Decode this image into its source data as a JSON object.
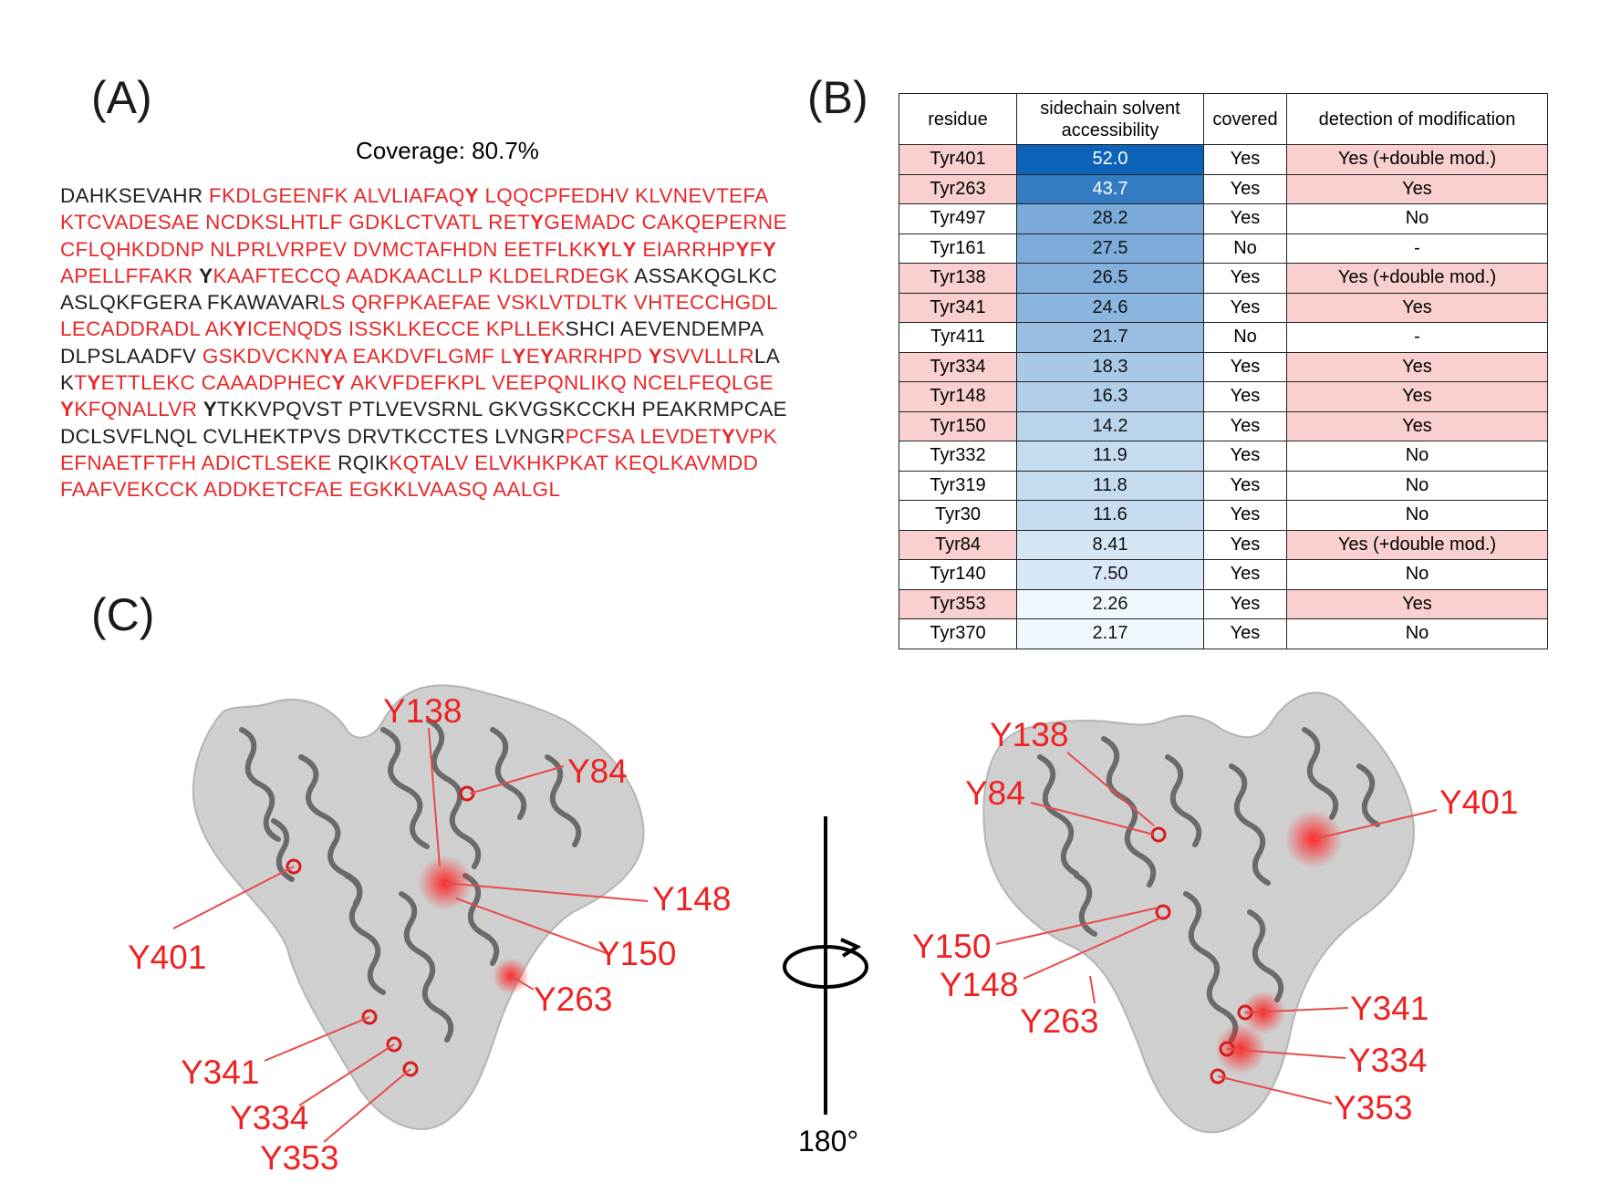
{
  "panels": {
    "a": "(A)",
    "b": "(B)",
    "c": "(C)"
  },
  "coverage": "Coverage: 80.7%",
  "sequence_lines": [
    [
      [
        "DAHKSEVAHR ",
        "u"
      ],
      [
        "FKDLGEENFK ALVLIAFAQ",
        "c"
      ],
      [
        "Y",
        "cy"
      ],
      [
        " LQQCPFEDHV KLVNEVTEFA",
        "c"
      ]
    ],
    [
      [
        "KTCVADESAE NCDKSLHTLF GDKLCTVATL RET",
        "c"
      ],
      [
        "Y",
        "cy"
      ],
      [
        "GEMADC CAKQEPERNE",
        "c"
      ]
    ],
    [
      [
        "CFLQHKDDNP NLPRLVRPEV DVMCTAFHDN EETFLKK",
        "c"
      ],
      [
        "Y",
        "cy"
      ],
      [
        "L",
        "c"
      ],
      [
        "Y",
        "cy"
      ],
      [
        " EIARRHP",
        "c"
      ],
      [
        "Y",
        "cy"
      ],
      [
        "F",
        "c"
      ],
      [
        "Y",
        "cy"
      ]
    ],
    [
      [
        "APELLFFAKR ",
        "c"
      ],
      [
        "Y",
        "uy"
      ],
      [
        "KAAFTECCQ AADKAACLLP KLDELRDEGK ",
        "c"
      ],
      [
        "ASSAKQGLKC",
        "u"
      ]
    ],
    [
      [
        "ASLQKFGERA FKAWAVAR",
        "u"
      ],
      [
        "LS QRFPKAEFAE VSKLVTDLTK VHTECCHGDL",
        "c"
      ]
    ],
    [
      [
        "LECADDRADL AK",
        "c"
      ],
      [
        "Y",
        "cy"
      ],
      [
        "ICENQDS ISSKLKECCE KPLLEK",
        "c"
      ],
      [
        "SHCI AEVENDEMPA",
        "u"
      ]
    ],
    [
      [
        "DLPSLAADFV ",
        "u"
      ],
      [
        "GSKDVCKN",
        "c"
      ],
      [
        "Y",
        "cy"
      ],
      [
        "A EAKDVFLGMF L",
        "c"
      ],
      [
        "Y",
        "cy"
      ],
      [
        "E",
        "c"
      ],
      [
        "Y",
        "cy"
      ],
      [
        "ARRHPD ",
        "c"
      ],
      [
        "Y",
        "cy"
      ],
      [
        "SVVLLLR",
        "c"
      ],
      [
        "LA",
        "u"
      ]
    ],
    [
      [
        "K",
        "u"
      ],
      [
        "T",
        "c"
      ],
      [
        "Y",
        "cy"
      ],
      [
        "ETTLEKC CAAADPHEC",
        "c"
      ],
      [
        "Y",
        "cy"
      ],
      [
        " AKVFDEFKPL VEEPQNLIKQ NCELFEQLGE",
        "c"
      ]
    ],
    [
      [
        "Y",
        "cy"
      ],
      [
        "KFQNALLVR ",
        "c"
      ],
      [
        "Y",
        "uy"
      ],
      [
        "TKKVPQVST PTLVEVSRNL GKVGSKCCKH PEAKRMPCAE",
        "u"
      ]
    ],
    [
      [
        "DCLSVFLNQL CVLHEKTPVS DRVTKCCTES LVNGR",
        "u"
      ],
      [
        "PCFSA LEVDET",
        "c"
      ],
      [
        "Y",
        "cy"
      ],
      [
        "VPK",
        "c"
      ]
    ],
    [
      [
        "EFNAETFTFH ADICTLSEKE ",
        "c"
      ],
      [
        "RQIK",
        "u"
      ],
      [
        "KQTALV ELVKHKPKAT KEQLKAVMDD",
        "c"
      ]
    ],
    [
      [
        "FAAFVEKCCK ADDKETCFAE EGKKLVAASQ AALGL",
        "c"
      ]
    ]
  ],
  "table": {
    "headers": {
      "residue": "residue",
      "accessibility": "sidechain solvent\naccessibility",
      "covered": "covered",
      "detection": "detection of modification"
    },
    "rows": [
      {
        "residue": "Tyr401",
        "accessibility": "52.0",
        "covered": "Yes",
        "detection": "Yes (+double mod.)",
        "modified": true
      },
      {
        "residue": "Tyr263",
        "accessibility": "43.7",
        "covered": "Yes",
        "detection": "Yes",
        "modified": true
      },
      {
        "residue": "Tyr497",
        "accessibility": "28.2",
        "covered": "Yes",
        "detection": "No",
        "modified": false
      },
      {
        "residue": "Tyr161",
        "accessibility": "27.5",
        "covered": "No",
        "detection": "-",
        "modified": false
      },
      {
        "residue": "Tyr138",
        "accessibility": "26.5",
        "covered": "Yes",
        "detection": "Yes (+double mod.)",
        "modified": true
      },
      {
        "residue": "Tyr341",
        "accessibility": "24.6",
        "covered": "Yes",
        "detection": "Yes",
        "modified": true
      },
      {
        "residue": "Tyr411",
        "accessibility": "21.7",
        "covered": "No",
        "detection": "-",
        "modified": false
      },
      {
        "residue": "Tyr334",
        "accessibility": "18.3",
        "covered": "Yes",
        "detection": "Yes",
        "modified": true
      },
      {
        "residue": "Tyr148",
        "accessibility": "16.3",
        "covered": "Yes",
        "detection": "Yes",
        "modified": true
      },
      {
        "residue": "Tyr150",
        "accessibility": "14.2",
        "covered": "Yes",
        "detection": "Yes",
        "modified": true
      },
      {
        "residue": "Tyr332",
        "accessibility": "11.9",
        "covered": "Yes",
        "detection": "No",
        "modified": false
      },
      {
        "residue": "Tyr319",
        "accessibility": "11.8",
        "covered": "Yes",
        "detection": "No",
        "modified": false
      },
      {
        "residue": "Tyr30",
        "accessibility": "11.6",
        "covered": "Yes",
        "detection": "No",
        "modified": false
      },
      {
        "residue": "Tyr84",
        "accessibility": "8.41",
        "covered": "Yes",
        "detection": "Yes (+double mod.)",
        "modified": true
      },
      {
        "residue": "Tyr140",
        "accessibility": "7.50",
        "covered": "Yes",
        "detection": "No",
        "modified": false
      },
      {
        "residue": "Tyr353",
        "accessibility": "2.26",
        "covered": "Yes",
        "detection": "Yes",
        "modified": true
      },
      {
        "residue": "Tyr370",
        "accessibility": "2.17",
        "covered": "Yes",
        "detection": "No",
        "modified": false
      }
    ]
  },
  "structure_labels": {
    "left": [
      "Y138",
      "Y84",
      "Y148",
      "Y401",
      "Y150",
      "Y263",
      "Y341",
      "Y334",
      "Y353"
    ],
    "right": [
      "Y138",
      "Y84",
      "Y401",
      "Y150",
      "Y148",
      "Y263",
      "Y341",
      "Y334",
      "Y353"
    ]
  },
  "rotation_label": "180°",
  "colors": {
    "covered": "#e8292b",
    "uncovered": "#222222",
    "modified_row": "#f9cfcf",
    "accessibility_high": "#0d63b8",
    "accessibility_low": "#f1f8fd",
    "label_red": "#ee2222"
  }
}
